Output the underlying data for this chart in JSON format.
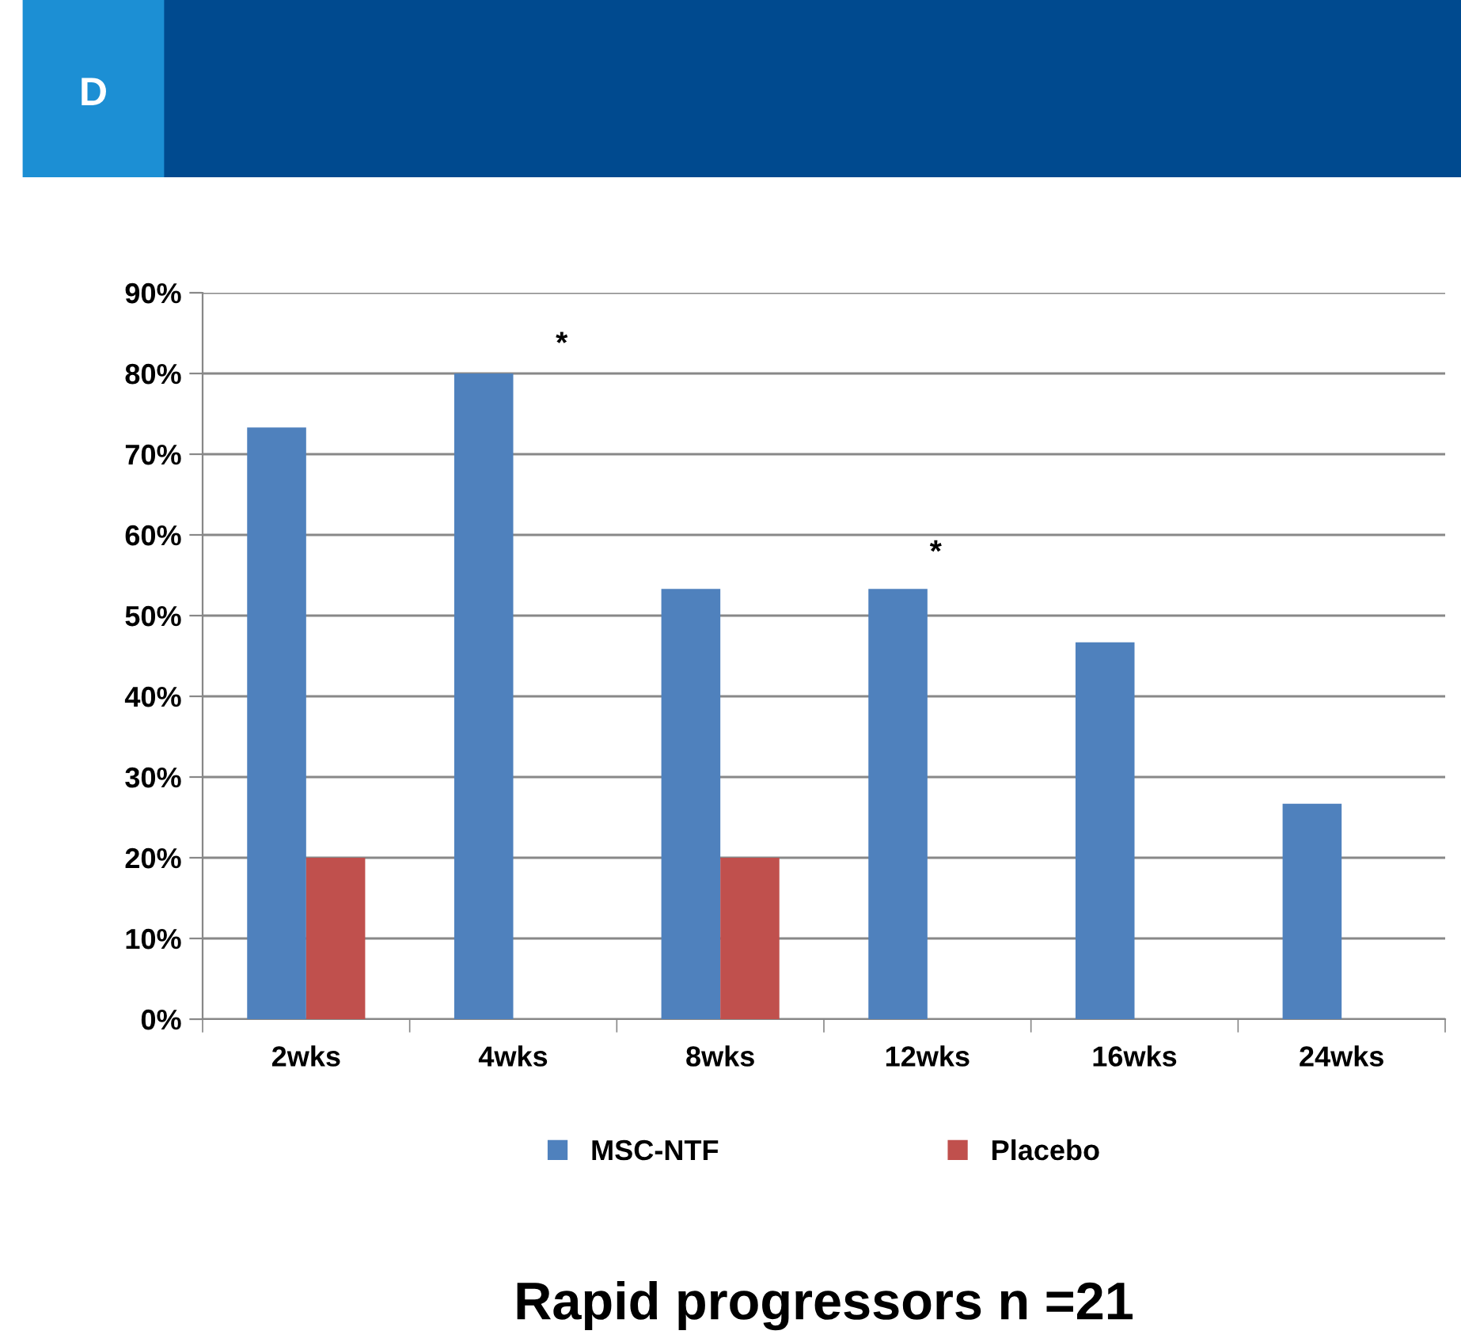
{
  "chart_data": {
    "type": "bar",
    "title": "Rapid progressors n =21",
    "categories": [
      "2wks",
      "4wks",
      "8wks",
      "12wks",
      "16wks",
      "24wks"
    ],
    "series": [
      {
        "name": "MSC-NTF",
        "color": "#4f81bd",
        "values": [
          73.3,
          80,
          53.3,
          53.3,
          46.7,
          26.7
        ]
      },
      {
        "name": "Placebo",
        "color": "#c0504d",
        "values": [
          20,
          0,
          20,
          0,
          0,
          0
        ]
      }
    ],
    "ylim": [
      0,
      90
    ],
    "yticks": [
      {
        "value": 0,
        "label": "0%"
      },
      {
        "value": 10,
        "label": "10%"
      },
      {
        "value": 20,
        "label": "20%"
      },
      {
        "value": 30,
        "label": "30%"
      },
      {
        "value": 40,
        "label": "40%"
      },
      {
        "value": 50,
        "label": "50%"
      },
      {
        "value": 60,
        "label": "60%"
      },
      {
        "value": 70,
        "label": "70%"
      },
      {
        "value": 80,
        "label": "80%"
      },
      {
        "value": 90,
        "label": "90%"
      }
    ],
    "grid": "y",
    "legend": "bottom",
    "annotations": [
      "D",
      "*",
      "*"
    ]
  }
}
